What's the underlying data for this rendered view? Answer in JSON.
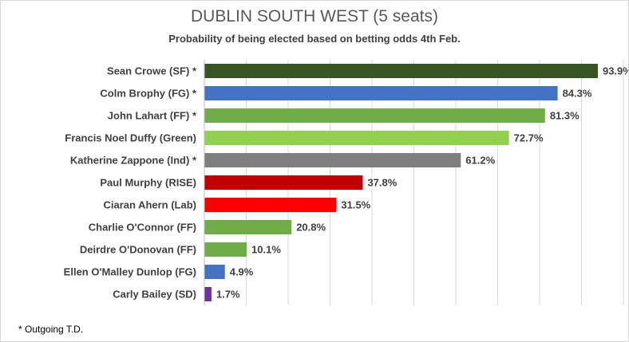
{
  "chart_data": {
    "type": "bar",
    "orientation": "horizontal",
    "title": "DUBLIN SOUTH WEST (5 seats)",
    "subtitle": "Probability of being elected based on betting odds 4th Feb.",
    "xlabel": "",
    "ylabel": "",
    "xlim": [
      0,
      100
    ],
    "grid": true,
    "categories": [
      "Sean Crowe (SF) *",
      "Colm Brophy (FG) *",
      "John Lahart (FF) *",
      "Francis Noel Duffy (Green)",
      "Katherine Zappone (Ind) *",
      "Paul Murphy (RISE)",
      "Ciaran Ahern (Lab)",
      "Charlie O'Connor (FF)",
      "Deirdre O'Donovan (FF)",
      "Ellen O'Malley Dunlop (FG)",
      "Carly Bailey (SD)"
    ],
    "values": [
      93.9,
      84.3,
      81.3,
      72.7,
      61.2,
      37.8,
      31.5,
      20.8,
      10.1,
      4.9,
      1.7
    ],
    "value_labels": [
      "93.9%",
      "84.3%",
      "81.3%",
      "72.7%",
      "61.2%",
      "37.8%",
      "31.5%",
      "20.8%",
      "10.1%",
      "4.9%",
      "1.7%"
    ],
    "colors": [
      "#375623",
      "#4472c4",
      "#70ad47",
      "#92d050",
      "#7f7f7f",
      "#c00000",
      "#ff0000",
      "#70ad47",
      "#70ad47",
      "#4472c4",
      "#7030a0"
    ],
    "footnote": "* Outgoing T.D."
  }
}
